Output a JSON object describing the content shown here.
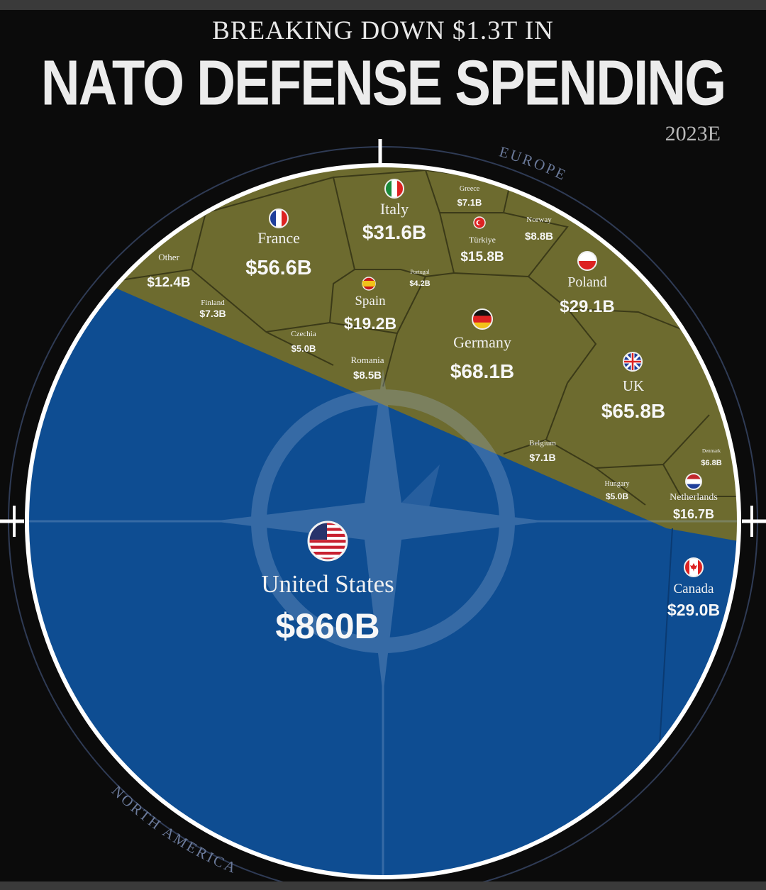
{
  "header": {
    "subtitle": "BREAKING DOWN $1.3T IN",
    "title": "NATO DEFENSE SPENDING",
    "year": "2023E"
  },
  "regions": {
    "europe": "EUROPE",
    "north_america": "NORTH AMERICA"
  },
  "colors": {
    "europe": "#6d6b2f",
    "north_america": "#0e4d92",
    "cell_border": "#3b3a18",
    "ring": "#ffffff"
  },
  "chart_data": {
    "type": "voronoi-treemap",
    "title": "NATO DEFENSE SPENDING",
    "subtitle": "BREAKING DOWN $1.3T IN",
    "period": "2023E",
    "unit": "USD",
    "total": "$1.3T",
    "groups": [
      {
        "name": "EUROPE",
        "countries": [
          {
            "name": "Other",
            "value": 12.4,
            "label": "$12.4B"
          },
          {
            "name": "France",
            "value": 56.6,
            "label": "$56.6B",
            "flag": "france-flag-icon"
          },
          {
            "name": "Finland",
            "value": 7.3,
            "label": "$7.3B"
          },
          {
            "name": "Italy",
            "value": 31.6,
            "label": "$31.6B",
            "flag": "italy-flag-icon"
          },
          {
            "name": "Greece",
            "value": 7.1,
            "label": "$7.1B"
          },
          {
            "name": "Norway",
            "value": 8.8,
            "label": "$8.8B"
          },
          {
            "name": "Türkiye",
            "value": 15.8,
            "label": "$15.8B",
            "flag": "turkiye-flag-icon"
          },
          {
            "name": "Portugal",
            "value": 4.2,
            "label": "$4.2B"
          },
          {
            "name": "Spain",
            "value": 19.2,
            "label": "$19.2B",
            "flag": "spain-flag-icon"
          },
          {
            "name": "Poland",
            "value": 29.1,
            "label": "$29.1B",
            "flag": "poland-flag-icon"
          },
          {
            "name": "Czechia",
            "value": 5.0,
            "label": "$5.0B"
          },
          {
            "name": "Germany",
            "value": 68.1,
            "label": "$68.1B",
            "flag": "germany-flag-icon"
          },
          {
            "name": "Romania",
            "value": 8.5,
            "label": "$8.5B"
          },
          {
            "name": "UK",
            "value": 65.8,
            "label": "$65.8B",
            "flag": "uk-flag-icon"
          },
          {
            "name": "Belgium",
            "value": 7.1,
            "label": "$7.1B"
          },
          {
            "name": "Denmark",
            "value": 6.8,
            "label": "$6.8B"
          },
          {
            "name": "Hungary",
            "value": 5.0,
            "label": "$5.0B"
          },
          {
            "name": "Netherlands",
            "value": 16.7,
            "label": "$16.7B",
            "flag": "netherlands-flag-icon"
          }
        ]
      },
      {
        "name": "NORTH AMERICA",
        "countries": [
          {
            "name": "United States",
            "value": 860,
            "label": "$860B",
            "flag": "usa-flag-icon"
          },
          {
            "name": "Canada",
            "value": 29.0,
            "label": "$29.0B",
            "flag": "canada-flag-icon"
          }
        ]
      }
    ]
  }
}
